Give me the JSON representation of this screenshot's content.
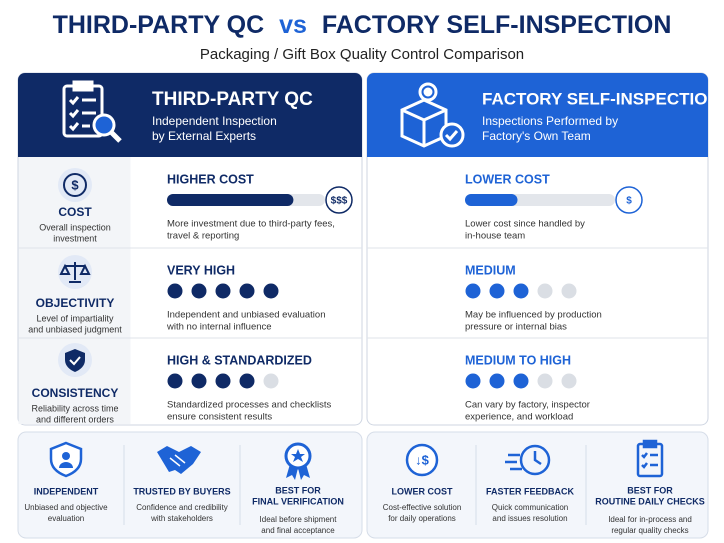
{
  "header": {
    "title_left": "THIRD-PARTY QC",
    "vs": "vs",
    "title_right": "FACTORY SELF-INSPECTION",
    "subtitle": "Packaging / Gift Box Quality Control Comparison"
  },
  "panels": [
    {
      "title": "THIRD-PARTY QC",
      "subtitle": [
        "Independent Inspection",
        "by External Experts"
      ]
    },
    {
      "title": "FACTORY SELF-INSPECTION",
      "subtitle": [
        "Inspections Performed by",
        "Factory's Own Team"
      ]
    }
  ],
  "criteria": [
    {
      "name": "COST",
      "desc": [
        "Overall inspection",
        "investment"
      ]
    },
    {
      "name": "OBJECTIVITY",
      "desc": [
        "Level of impartiality",
        "and unbiased judgment"
      ]
    },
    {
      "name": "CONSISTENCY",
      "desc": [
        "Reliability across time",
        "and different orders"
      ]
    }
  ],
  "ratings": [
    [
      {
        "label": "HIGHER COST",
        "badge": "$$$",
        "bar_percent": 80,
        "text": [
          "More investment due to third-party fees,",
          "travel & reporting"
        ]
      },
      {
        "label": "VERY HIGH",
        "dots_filled": 5,
        "dots_total": 5,
        "text": [
          "Independent and unbiased evaluation",
          "with no internal influence"
        ]
      },
      {
        "label": "HIGH & STANDARDIZED",
        "dots_filled": 4,
        "dots_total": 5,
        "text": [
          "Standardized processes and checklists",
          "ensure consistent results"
        ]
      }
    ],
    [
      {
        "label": "LOWER COST",
        "badge": "$",
        "bar_percent": 35,
        "text": [
          "Lower cost since handled by",
          "in-house team"
        ]
      },
      {
        "label": "MEDIUM",
        "dots_filled": 3,
        "dots_total": 5,
        "text": [
          "May be influenced by production",
          "pressure or internal bias"
        ]
      },
      {
        "label": "MEDIUM TO HIGH",
        "dots_filled": 3,
        "dots_total": 5,
        "text": [
          "Can vary by factory, inspector",
          "experience, and workload"
        ]
      }
    ]
  ],
  "features": [
    [
      {
        "title": [
          "INDEPENDENT"
        ],
        "desc": [
          "Unbiased and objective",
          "evaluation"
        ]
      },
      {
        "title": [
          "TRUSTED BY BUYERS"
        ],
        "desc": [
          "Confidence and credibility",
          "with stakeholders"
        ]
      },
      {
        "title": [
          "BEST FOR",
          "FINAL VERIFICATION"
        ],
        "desc": [
          "Ideal before shipment",
          "and final acceptance"
        ]
      }
    ],
    [
      {
        "title": [
          "LOWER COST"
        ],
        "desc": [
          "Cost-effective solution",
          "for daily operations"
        ]
      },
      {
        "title": [
          "FASTER FEEDBACK"
        ],
        "desc": [
          "Quick communication",
          "and issues resolution"
        ]
      },
      {
        "title": [
          "BEST FOR",
          "ROUTINE DAILY CHECKS"
        ],
        "desc": [
          "Ideal for in-process and",
          "regular quality checks"
        ]
      }
    ]
  ]
}
